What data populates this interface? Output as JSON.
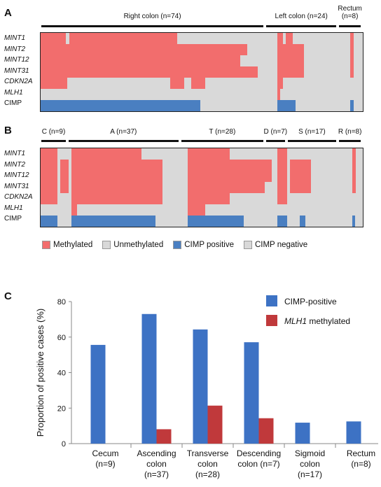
{
  "panel_a": {
    "letter": "A",
    "groups": [
      {
        "label": "Right colon (n=74)",
        "n": 74
      },
      {
        "label": "Left colon (n=24)",
        "n": 24
      },
      {
        "label": "Rectum\n(n=8)",
        "n": 8
      }
    ]
  },
  "panel_b": {
    "letter": "B",
    "groups": [
      {
        "label": "C (n=9)",
        "n": 9
      },
      {
        "label": "A (n=37)",
        "n": 37
      },
      {
        "label": "T (n=28)",
        "n": 28
      },
      {
        "label": "D (n=7)",
        "n": 7
      },
      {
        "label": "S (n=17)",
        "n": 17
      },
      {
        "label": "R (n=8)",
        "n": 8
      }
    ]
  },
  "rows": [
    "MINT1",
    "MINT2",
    "MINT12",
    "MINT31",
    "CDKN2A",
    "MLH1",
    "CIMP"
  ],
  "legend": {
    "methylated": "Methylated",
    "unmethylated": "Unmethylated",
    "cimp_positive": "CIMP positive",
    "cimp_negative": "CIMP negative"
  },
  "colors": {
    "methylated": "#f26d6d",
    "unmethylated": "#d9d9d9",
    "cimp_positive": "#4a7fc1",
    "bar_blue": "#3d72c4",
    "bar_red": "#c0393b"
  },
  "panel_c": {
    "letter": "C"
  },
  "chart_data": {
    "type": "bar",
    "categories": [
      "Cecum\n(n=9)",
      "Ascending\ncolon\n(n=37)",
      "Transverse\ncolon\n(n=28)",
      "Descending\ncolon (n=7)",
      "Sigmoid\ncolon\n(n=17)",
      "Rectum\n(n=8)"
    ],
    "series": [
      {
        "name": "CIMP-positive",
        "values": [
          55.6,
          73.0,
          64.3,
          57.1,
          11.8,
          12.5
        ]
      },
      {
        "name": "MLH1 methylated",
        "values": [
          0,
          8.1,
          21.4,
          14.3,
          0,
          0
        ]
      }
    ],
    "ylabel": "Proportion of positive cases (%)",
    "ylim": [
      0,
      80
    ],
    "yticks": [
      0,
      20,
      40,
      60,
      80
    ],
    "legend_position": "top-right"
  }
}
